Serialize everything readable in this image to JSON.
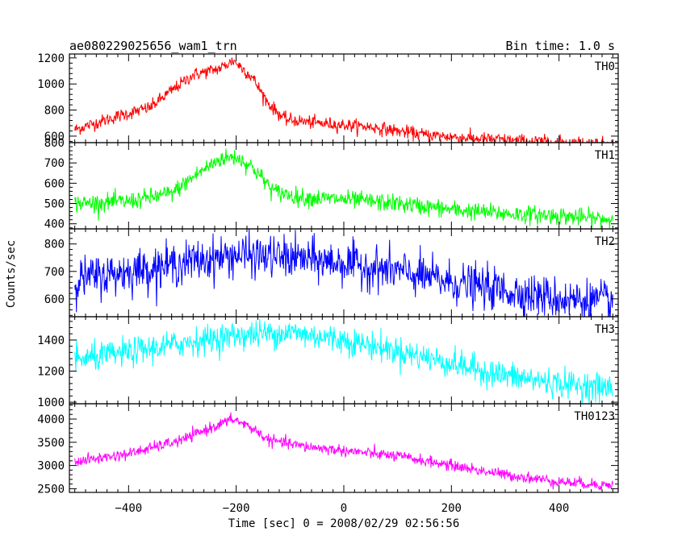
{
  "chart_data": {
    "type": "line",
    "title_left": "ae080229025656_wam1_trn",
    "title_right": "Bin time: 1.0 s",
    "xlabel": "Time [sec] 0 = 2008/02/29 02:56:56",
    "ylabel": "Counts/sec",
    "xlim": [
      -510,
      510
    ],
    "x_ticks": [
      -400,
      -200,
      0,
      200,
      400
    ],
    "x_tick_labels": [
      "−400",
      "−200",
      "0",
      "200",
      "400"
    ],
    "grid": false,
    "series": [
      {
        "name": "TH0",
        "color": "#ff0000",
        "ylim": [
          550,
          1230
        ],
        "y_ticks": [
          600,
          800,
          1000,
          1200
        ],
        "y_tick_labels": [
          "600",
          "800",
          "1000",
          "1200"
        ],
        "noise": 25,
        "profile": [
          [
            -500,
            650
          ],
          [
            -430,
            740
          ],
          [
            -360,
            820
          ],
          [
            -320,
            950
          ],
          [
            -280,
            1070
          ],
          [
            -230,
            1120
          ],
          [
            -205,
            1180
          ],
          [
            -170,
            1050
          ],
          [
            -140,
            850
          ],
          [
            -110,
            730
          ],
          [
            -50,
            700
          ],
          [
            50,
            670
          ],
          [
            150,
            610
          ],
          [
            250,
            580
          ],
          [
            350,
            560
          ],
          [
            430,
            550
          ],
          [
            500,
            540
          ]
        ]
      },
      {
        "name": "TH1",
        "color": "#00ff00",
        "ylim": [
          375,
          800
        ],
        "y_ticks": [
          400,
          500,
          600,
          700,
          800
        ],
        "y_tick_labels": [
          "400",
          "500",
          "600",
          "700",
          "800"
        ],
        "noise": 22,
        "profile": [
          [
            -500,
            500
          ],
          [
            -400,
            510
          ],
          [
            -320,
            550
          ],
          [
            -270,
            650
          ],
          [
            -230,
            720
          ],
          [
            -200,
            730
          ],
          [
            -170,
            680
          ],
          [
            -130,
            560
          ],
          [
            -80,
            530
          ],
          [
            0,
            520
          ],
          [
            100,
            500
          ],
          [
            200,
            470
          ],
          [
            300,
            450
          ],
          [
            400,
            440
          ],
          [
            500,
            420
          ]
        ]
      },
      {
        "name": "TH2",
        "color": "#0000ff",
        "ylim": [
          535,
          855
        ],
        "y_ticks": [
          600,
          700,
          800
        ],
        "y_tick_labels": [
          "600",
          "700",
          "800"
        ],
        "noise": 38,
        "profile": [
          [
            -500,
            670
          ],
          [
            -400,
            700
          ],
          [
            -300,
            730
          ],
          [
            -200,
            760
          ],
          [
            -100,
            750
          ],
          [
            0,
            730
          ],
          [
            100,
            700
          ],
          [
            200,
            660
          ],
          [
            300,
            630
          ],
          [
            400,
            600
          ],
          [
            500,
            590
          ]
        ]
      },
      {
        "name": "TH3",
        "color": "#00ffff",
        "ylim": [
          990,
          1550
        ],
        "y_ticks": [
          1000,
          1200,
          1400
        ],
        "y_tick_labels": [
          "1000",
          "1200",
          "1400"
        ],
        "noise": 45,
        "profile": [
          [
            -500,
            1270
          ],
          [
            -400,
            1320
          ],
          [
            -300,
            1380
          ],
          [
            -200,
            1430
          ],
          [
            -100,
            1450
          ],
          [
            0,
            1400
          ],
          [
            100,
            1330
          ],
          [
            200,
            1250
          ],
          [
            300,
            1170
          ],
          [
            400,
            1120
          ],
          [
            500,
            1090
          ]
        ]
      },
      {
        "name": "TH0123",
        "color": "#ff00ff",
        "ylim": [
          2420,
          4330
        ],
        "y_ticks": [
          2500,
          3000,
          3500,
          4000
        ],
        "y_tick_labels": [
          "2500",
          "3000",
          "3500",
          "4000"
        ],
        "noise": 60,
        "profile": [
          [
            -500,
            3080
          ],
          [
            -400,
            3250
          ],
          [
            -300,
            3550
          ],
          [
            -250,
            3800
          ],
          [
            -205,
            4000
          ],
          [
            -170,
            3800
          ],
          [
            -140,
            3550
          ],
          [
            -80,
            3420
          ],
          [
            0,
            3320
          ],
          [
            100,
            3200
          ],
          [
            200,
            3000
          ],
          [
            300,
            2800
          ],
          [
            400,
            2650
          ],
          [
            500,
            2570
          ]
        ]
      }
    ]
  }
}
